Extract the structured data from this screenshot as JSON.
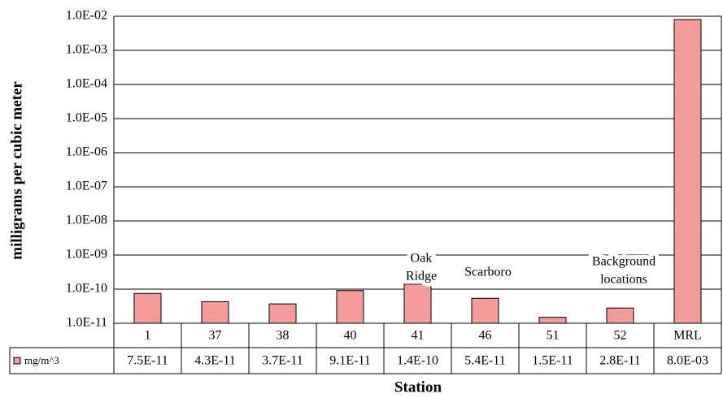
{
  "chart_data": {
    "type": "bar",
    "x_label": "Station",
    "y_label": "milligrams per cubic meter",
    "categories": [
      "1",
      "37",
      "38",
      "40",
      "41",
      "46",
      "51",
      "52",
      "MRL"
    ],
    "series": [
      {
        "name": "mg/m^3",
        "color": "#f29b98",
        "values": [
          7.5e-11,
          4.3e-11,
          3.7e-11,
          9.1e-11,
          1.4e-10,
          5.4e-11,
          1.5e-11,
          2.8e-11,
          0.008
        ],
        "value_labels": [
          "7.5E-11",
          "4.3E-11",
          "3.7E-11",
          "9.1E-11",
          "1.4E-10",
          "5.4E-11",
          "1.5E-11",
          "2.8E-11",
          "8.0E-03"
        ]
      }
    ],
    "log_scale": true,
    "grid": true,
    "ylim": [
      1e-11,
      0.01
    ],
    "yticks": [
      {
        "value": 1e-11,
        "label": "1.0E-11"
      },
      {
        "value": 1e-10,
        "label": "1.0E-10"
      },
      {
        "value": 1e-09,
        "label": "1.0E-09"
      },
      {
        "value": 1e-08,
        "label": "1.0E-08"
      },
      {
        "value": 1e-07,
        "label": "1.0E-07"
      },
      {
        "value": 1e-06,
        "label": "1.0E-06"
      },
      {
        "value": 1e-05,
        "label": "1.0E-05"
      },
      {
        "value": 0.0001,
        "label": "1.0E-04"
      },
      {
        "value": 0.001,
        "label": "1.0E-03"
      },
      {
        "value": 0.01,
        "label": "1.0E-02"
      }
    ],
    "annotations": [
      {
        "lines": [
          "Oak",
          "Ridge"
        ]
      },
      {
        "lines": [
          "Scarboro"
        ]
      },
      {
        "lines": [
          "Background",
          "locations"
        ]
      }
    ]
  }
}
